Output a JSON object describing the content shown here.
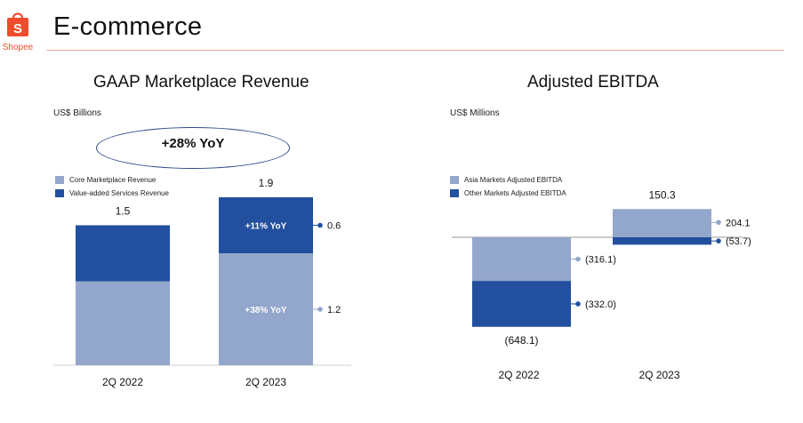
{
  "brand": {
    "logo_text": "Shopee",
    "color": "#ee4d2d"
  },
  "page": {
    "title": "E-commerce"
  },
  "chart_data": [
    {
      "type": "bar",
      "stacked": true,
      "title": "GAAP Marketplace Revenue",
      "unit": "US$ Billions",
      "highlight": "+28% YoY",
      "categories": [
        "2Q 2022",
        "2Q 2023"
      ],
      "totals": [
        "1.5",
        "1.9"
      ],
      "series": [
        {
          "name": "Core Marketplace Revenue",
          "color": "#93a6cb",
          "values": [
            0.9,
            1.2
          ],
          "labels": [
            "",
            "1.2"
          ],
          "inner_labels": [
            "",
            "+38% YoY"
          ]
        },
        {
          "name": "Value-added Services Revenue",
          "color": "#224f9e",
          "values": [
            0.6,
            0.6
          ],
          "labels": [
            "",
            "0.6"
          ],
          "inner_labels": [
            "",
            "+11% YoY"
          ]
        }
      ],
      "ylim": [
        0,
        2.0
      ]
    },
    {
      "type": "bar",
      "stacked": true,
      "title": "Adjusted EBITDA",
      "unit": "US$ Millions",
      "categories": [
        "2Q 2022",
        "2Q 2023"
      ],
      "totals": [
        "(648.1)",
        "150.3"
      ],
      "series": [
        {
          "name": "Asia Markets Adjusted EBITDA",
          "color": "#93a6cb",
          "values": [
            -316.1,
            204.1
          ],
          "labels": [
            "(316.1)",
            "204.1"
          ]
        },
        {
          "name": "Other Markets Adjusted EBITDA",
          "color": "#224f9e",
          "values": [
            -332.0,
            -53.7
          ],
          "labels": [
            "(332.0)",
            "(53.7)"
          ]
        }
      ]
    }
  ]
}
